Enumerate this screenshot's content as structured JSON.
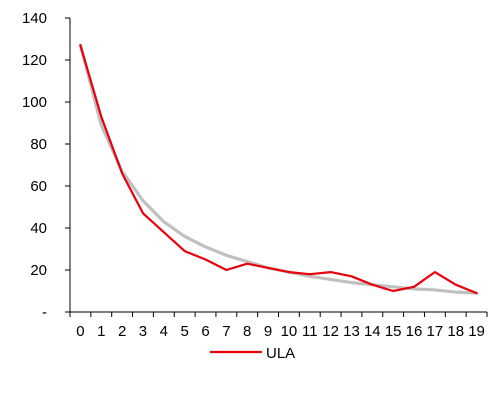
{
  "chart_data": {
    "type": "line",
    "title": "",
    "xlabel": "",
    "ylabel": "",
    "x": [
      0,
      1,
      2,
      3,
      4,
      5,
      6,
      7,
      8,
      9,
      10,
      11,
      12,
      13,
      14,
      15,
      16,
      17,
      18,
      19
    ],
    "x_tick_labels": [
      "0",
      "1",
      "2",
      "3",
      "4",
      "5",
      "6",
      "7",
      "8",
      "9",
      "10",
      "11",
      "12",
      "13",
      "14",
      "15",
      "16",
      "17",
      "18",
      "19"
    ],
    "y_tick_labels": [
      "-",
      "20",
      "40",
      "60",
      "80",
      "100",
      "120",
      "140"
    ],
    "y_tick_values": [
      0,
      20,
      40,
      60,
      80,
      100,
      120,
      140
    ],
    "ylim": [
      0,
      140
    ],
    "grid": false,
    "legend_position": "bottom",
    "series": [
      {
        "name": "ULA",
        "color": "#e8000b",
        "in_legend": true,
        "values": [
          127,
          93,
          66,
          47,
          38,
          29,
          25,
          20,
          23,
          21,
          19,
          18,
          19,
          17,
          13,
          10,
          12,
          19,
          13,
          9
        ]
      },
      {
        "name": "",
        "color": "#c0c0c0",
        "in_legend": false,
        "values": [
          127,
          89,
          67,
          53,
          43,
          36,
          31,
          27,
          24,
          21,
          19,
          17,
          15.5,
          14,
          13,
          12,
          11,
          10.5,
          9.5,
          9
        ]
      }
    ]
  }
}
